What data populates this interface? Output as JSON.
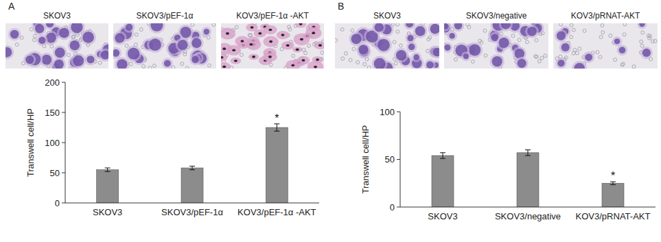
{
  "chart_data": [
    {
      "type": "bar",
      "title": "A",
      "image_labels": [
        "SKOV3",
        "SKOV3/pEF-1α",
        "KOV3/pEF-1α -AKT"
      ],
      "categories": [
        "SKOV3",
        "SKOV3/pEF-1α",
        "KOV3/pEF-1α -AKT"
      ],
      "values": [
        55,
        58,
        125
      ],
      "errors": [
        3,
        3,
        6
      ],
      "color": "#8c8c8c",
      "y_label": "Transwell cell/HP",
      "ylim": [
        0,
        200
      ],
      "yticks": [
        0,
        50,
        100,
        150,
        200
      ],
      "annotations": [
        {
          "category": "KOV3/pEF-1α -AKT",
          "text": "*"
        }
      ],
      "grid": false
    },
    {
      "type": "bar",
      "title": "B",
      "image_labels": [
        "SKOV3",
        "SKOV3/negative",
        "KOV3/pRNAT-AKT"
      ],
      "categories": [
        "SKOV3",
        "SKOV3/negative",
        "KOV3/pRNAT-AKT"
      ],
      "values": [
        54,
        57,
        25
      ],
      "errors": [
        3,
        3,
        1.5
      ],
      "color": "#8c8c8c",
      "y_label": "Transwell cell/HP",
      "ylim": [
        0,
        100
      ],
      "yticks": [
        0,
        50,
        100
      ],
      "annotations": [
        {
          "category": "KOV3/pRNAT-AKT",
          "text": "*"
        }
      ],
      "grid": false
    }
  ]
}
